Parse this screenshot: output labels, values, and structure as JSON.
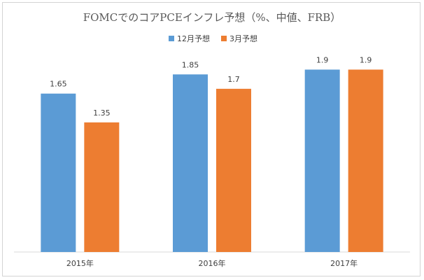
{
  "chart_data": {
    "type": "bar",
    "title": "FOMCでのコアPCEインフレ予想（%、中値、FRB）",
    "categories": [
      "2015年",
      "2016年",
      "2017年"
    ],
    "series": [
      {
        "name": "12月予想",
        "color": "#5b9bd5",
        "values": [
          1.65,
          1.85,
          1.9
        ]
      },
      {
        "name": "3月予想",
        "color": "#ed7d31",
        "values": [
          1.35,
          1.7,
          1.9
        ]
      }
    ],
    "data_labels": [
      [
        "1.65",
        "1.85",
        "1.9"
      ],
      [
        "1.35",
        "1.7",
        "1.9"
      ]
    ],
    "ylim": [
      0,
      2.1
    ],
    "grid": false,
    "legend_position": "top-center"
  }
}
